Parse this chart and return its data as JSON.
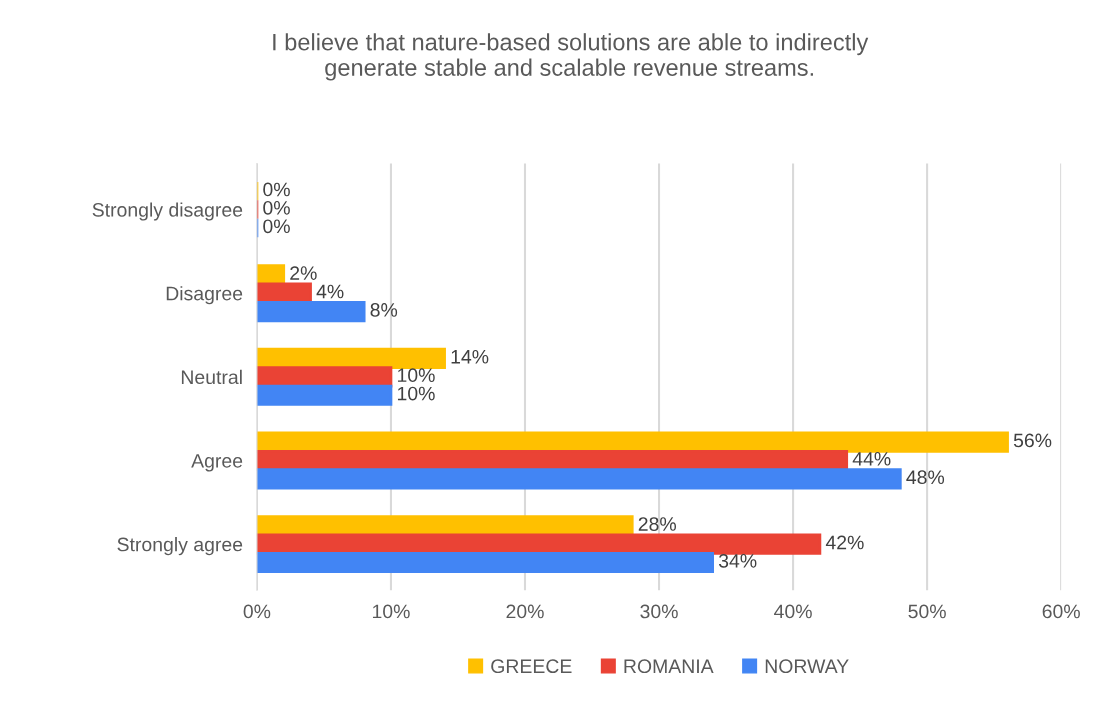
{
  "chart_data": {
    "type": "bar",
    "orientation": "horizontal",
    "title": "I believe that nature-based solutions are able to indirectly\ngenerate stable and scalable revenue streams.",
    "categories": [
      "Strongly disagree",
      "Disagree",
      "Neutral",
      "Agree",
      "Strongly agree"
    ],
    "series": [
      {
        "name": "GREECE",
        "color": "#ffc000",
        "values": [
          0,
          2,
          14,
          56,
          28
        ],
        "value_labels": [
          "0%",
          "2%",
          "14%",
          "56%",
          "28%"
        ]
      },
      {
        "name": "ROMANIA",
        "color": "#ea4335",
        "values": [
          0,
          4,
          10,
          44,
          42
        ],
        "value_labels": [
          "0%",
          "4%",
          "10%",
          "44%",
          "42%"
        ]
      },
      {
        "name": "NORWAY",
        "color": "#4285f4",
        "values": [
          0,
          8,
          10,
          48,
          34
        ],
        "value_labels": [
          "0%",
          "8%",
          "10%",
          "48%",
          "34%"
        ]
      }
    ],
    "xlim": [
      0,
      60
    ],
    "xticks": [
      {
        "value": 0,
        "label": "0%"
      },
      {
        "value": 10,
        "label": "10%"
      },
      {
        "value": 20,
        "label": "20%"
      },
      {
        "value": 30,
        "label": "30%"
      },
      {
        "value": 40,
        "label": "40%"
      },
      {
        "value": 50,
        "label": "50%"
      },
      {
        "value": 60,
        "label": "60%"
      }
    ],
    "grid": "x",
    "legend": "bottom"
  }
}
